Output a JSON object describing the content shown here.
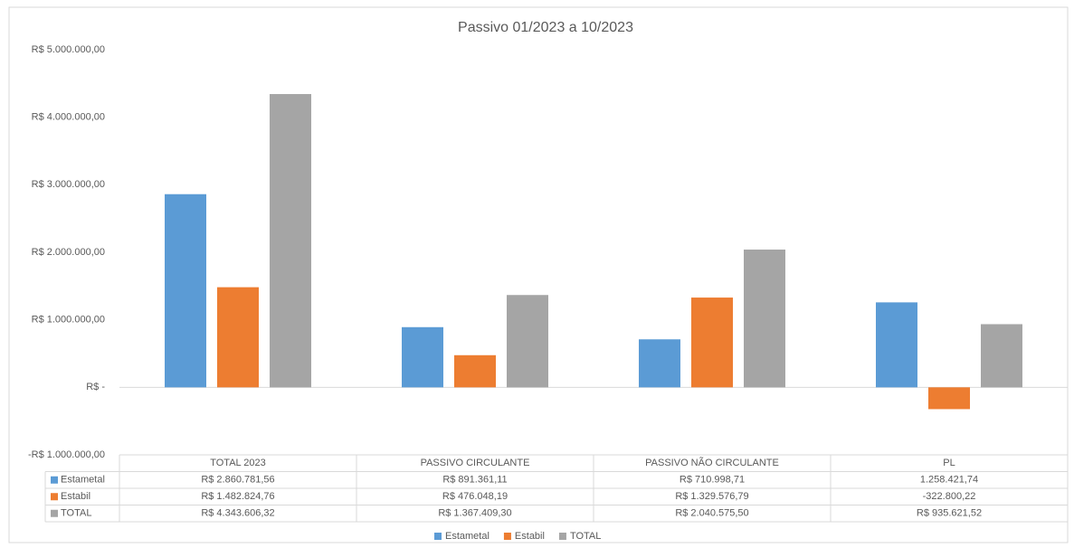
{
  "chart_data": {
    "type": "bar",
    "title": "Passivo 01/2023 a 10/2023",
    "categories": [
      "TOTAL 2023",
      "PASSIVO CIRCULANTE",
      "PASSIVO NÃO CIRCULANTE",
      "PL"
    ],
    "series": [
      {
        "name": "Estametal",
        "color": "#5b9bd5",
        "values": [
          2860781.56,
          891361.11,
          710998.71,
          1258421.74
        ],
        "value_labels": [
          "R$ 2.860.781,56",
          "R$ 891.361,11",
          "R$ 710.998,71",
          "1.258.421,74"
        ]
      },
      {
        "name": "Estabil",
        "color": "#ed7d31",
        "values": [
          1482824.76,
          476048.19,
          1329576.79,
          -322800.22
        ],
        "value_labels": [
          "R$ 1.482.824,76",
          "R$ 476.048,19",
          "R$ 1.329.576,79",
          "-322.800,22"
        ]
      },
      {
        "name": "TOTAL",
        "color": "#a5a5a5",
        "values": [
          4343606.32,
          1367409.3,
          2040575.5,
          935621.52
        ],
        "value_labels": [
          "R$ 4.343.606,32",
          "R$ 1.367.409,30",
          "R$ 2.040.575,50",
          "R$ 935.621,52"
        ]
      }
    ],
    "ylim": [
      -1000000,
      5000000
    ],
    "yticks": [
      {
        "value": -1000000,
        "label": "-R$ 1.000.000,00"
      },
      {
        "value": 0,
        "label": "R$ -"
      },
      {
        "value": 1000000,
        "label": "R$ 1.000.000,00"
      },
      {
        "value": 2000000,
        "label": "R$ 2.000.000,00"
      },
      {
        "value": 3000000,
        "label": "R$ 3.000.000,00"
      },
      {
        "value": 4000000,
        "label": "R$ 4.000.000,00"
      },
      {
        "value": 5000000,
        "label": "R$ 5.000.000,00"
      }
    ],
    "grid": false,
    "legend": "bottom"
  }
}
